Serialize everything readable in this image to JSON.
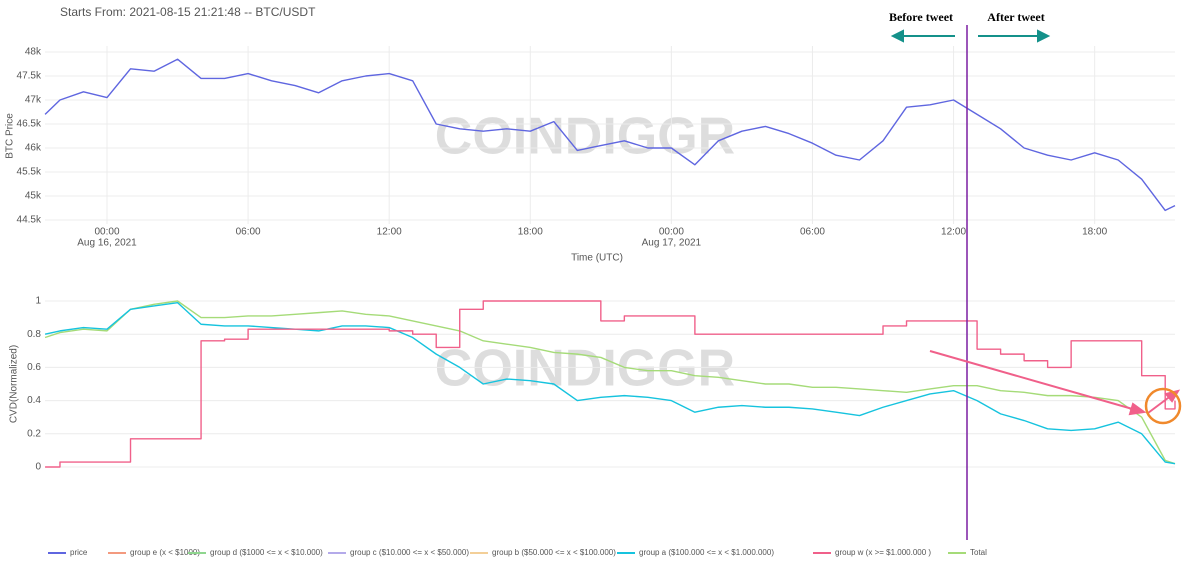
{
  "chart_data": [
    {
      "type": "line",
      "title": "Starts From: 2021-08-15 21:21:48 -- BTC/USDT",
      "ylabel": "BTC Price",
      "xlabel": "Time (UTC)",
      "xlim": [
        "2021-08-15T21:21:48",
        "2021-08-17T21:25"
      ],
      "xticks": [
        {
          "value": "2021-08-16T00:00",
          "label": "00:00",
          "date_label": "Aug 16, 2021"
        },
        {
          "value": "2021-08-16T06:00",
          "label": "06:00"
        },
        {
          "value": "2021-08-16T12:00",
          "label": "12:00"
        },
        {
          "value": "2021-08-16T18:00",
          "label": "18:00"
        },
        {
          "value": "2021-08-17T00:00",
          "label": "00:00",
          "date_label": "Aug 17, 2021"
        },
        {
          "value": "2021-08-17T06:00",
          "label": "06:00"
        },
        {
          "value": "2021-08-17T12:00",
          "label": "12:00"
        },
        {
          "value": "2021-08-17T18:00",
          "label": "18:00"
        }
      ],
      "ylim": [
        44500,
        48000
      ],
      "yticks": [
        {
          "value": 44500,
          "label": "44.5k"
        },
        {
          "value": 45000,
          "label": "45k"
        },
        {
          "value": 45500,
          "label": "45.5k"
        },
        {
          "value": 46000,
          "label": "46k"
        },
        {
          "value": 46500,
          "label": "46.5k"
        },
        {
          "value": 47000,
          "label": "47k"
        },
        {
          "value": 47500,
          "label": "47.5k"
        },
        {
          "value": 48000,
          "label": "48k"
        }
      ],
      "grid": true,
      "x": [
        "2021-08-15T21:22",
        "2021-08-15T22:00",
        "2021-08-15T23:00",
        "2021-08-16T00:00",
        "2021-08-16T01:00",
        "2021-08-16T02:00",
        "2021-08-16T03:00",
        "2021-08-16T04:00",
        "2021-08-16T05:00",
        "2021-08-16T06:00",
        "2021-08-16T07:00",
        "2021-08-16T08:00",
        "2021-08-16T09:00",
        "2021-08-16T10:00",
        "2021-08-16T11:00",
        "2021-08-16T12:00",
        "2021-08-16T13:00",
        "2021-08-16T14:00",
        "2021-08-16T15:00",
        "2021-08-16T16:00",
        "2021-08-16T17:00",
        "2021-08-16T18:00",
        "2021-08-16T19:00",
        "2021-08-16T20:00",
        "2021-08-16T21:00",
        "2021-08-16T22:00",
        "2021-08-16T23:00",
        "2021-08-17T00:00",
        "2021-08-17T01:00",
        "2021-08-17T02:00",
        "2021-08-17T03:00",
        "2021-08-17T04:00",
        "2021-08-17T05:00",
        "2021-08-17T06:00",
        "2021-08-17T07:00",
        "2021-08-17T08:00",
        "2021-08-17T09:00",
        "2021-08-17T10:00",
        "2021-08-17T11:00",
        "2021-08-17T12:00",
        "2021-08-17T13:00",
        "2021-08-17T14:00",
        "2021-08-17T15:00",
        "2021-08-17T16:00",
        "2021-08-17T17:00",
        "2021-08-17T18:00",
        "2021-08-17T19:00",
        "2021-08-17T20:00",
        "2021-08-17T21:00",
        "2021-08-17T21:25"
      ],
      "series": [
        {
          "legend": 0,
          "values": [
            46700,
            47000,
            47170,
            47050,
            47650,
            47600,
            47850,
            47450,
            47450,
            47550,
            47400,
            47300,
            47150,
            47400,
            47500,
            47550,
            47400,
            46500,
            46400,
            46350,
            46400,
            46350,
            46550,
            45950,
            46050,
            46150,
            46000,
            46000,
            45650,
            46150,
            46350,
            46450,
            46300,
            46100,
            45850,
            45750,
            46150,
            46850,
            46900,
            47000,
            46700,
            46400,
            46000,
            45850,
            45750,
            45900,
            45750,
            45350,
            44700,
            44800
          ]
        }
      ]
    },
    {
      "type": "line",
      "ylabel": "CVD(Normalized)",
      "xlim": [
        "2021-08-15T21:21:48",
        "2021-08-17T21:25"
      ],
      "ylim": [
        0,
        1
      ],
      "yticks": [
        0,
        0.2,
        0.4,
        0.6,
        0.8,
        1
      ],
      "grid": true,
      "x": [
        "2021-08-15T21:22",
        "2021-08-15T22:00",
        "2021-08-15T23:00",
        "2021-08-16T00:00",
        "2021-08-16T01:00",
        "2021-08-16T02:00",
        "2021-08-16T03:00",
        "2021-08-16T04:00",
        "2021-08-16T05:00",
        "2021-08-16T06:00",
        "2021-08-16T07:00",
        "2021-08-16T08:00",
        "2021-08-16T09:00",
        "2021-08-16T10:00",
        "2021-08-16T11:00",
        "2021-08-16T12:00",
        "2021-08-16T13:00",
        "2021-08-16T14:00",
        "2021-08-16T15:00",
        "2021-08-16T16:00",
        "2021-08-16T17:00",
        "2021-08-16T18:00",
        "2021-08-16T19:00",
        "2021-08-16T20:00",
        "2021-08-16T21:00",
        "2021-08-16T22:00",
        "2021-08-16T23:00",
        "2021-08-17T00:00",
        "2021-08-17T01:00",
        "2021-08-17T02:00",
        "2021-08-17T03:00",
        "2021-08-17T04:00",
        "2021-08-17T05:00",
        "2021-08-17T06:00",
        "2021-08-17T07:00",
        "2021-08-17T08:00",
        "2021-08-17T09:00",
        "2021-08-17T10:00",
        "2021-08-17T11:00",
        "2021-08-17T12:00",
        "2021-08-17T13:00",
        "2021-08-17T14:00",
        "2021-08-17T15:00",
        "2021-08-17T16:00",
        "2021-08-17T17:00",
        "2021-08-17T18:00",
        "2021-08-17T19:00",
        "2021-08-17T20:00",
        "2021-08-17T21:00",
        "2021-08-17T21:25"
      ],
      "series": [
        {
          "legend": 7,
          "values": [
            0.78,
            0.81,
            0.83,
            0.82,
            0.95,
            0.98,
            1.0,
            0.9,
            0.9,
            0.91,
            0.91,
            0.92,
            0.93,
            0.94,
            0.92,
            0.91,
            0.88,
            0.85,
            0.82,
            0.76,
            0.74,
            0.72,
            0.69,
            0.68,
            0.66,
            0.6,
            0.58,
            0.58,
            0.55,
            0.54,
            0.52,
            0.5,
            0.5,
            0.48,
            0.48,
            0.47,
            0.46,
            0.45,
            0.47,
            0.49,
            0.49,
            0.46,
            0.45,
            0.43,
            0.43,
            0.42,
            0.4,
            0.3,
            0.04,
            0.02
          ]
        },
        {
          "legend": 5,
          "values": [
            0.8,
            0.82,
            0.84,
            0.83,
            0.95,
            0.97,
            0.99,
            0.86,
            0.85,
            0.85,
            0.84,
            0.83,
            0.82,
            0.85,
            0.85,
            0.84,
            0.78,
            0.68,
            0.6,
            0.5,
            0.53,
            0.52,
            0.5,
            0.4,
            0.42,
            0.43,
            0.42,
            0.4,
            0.33,
            0.36,
            0.37,
            0.36,
            0.36,
            0.35,
            0.33,
            0.31,
            0.36,
            0.4,
            0.44,
            0.46,
            0.4,
            0.32,
            0.28,
            0.23,
            0.22,
            0.23,
            0.27,
            0.2,
            0.03,
            0.02
          ]
        },
        {
          "legend": 6,
          "line_shape": "hv",
          "values": [
            0,
            0.03,
            0.03,
            0.03,
            0.17,
            0.17,
            0.17,
            0.76,
            0.77,
            0.83,
            0.83,
            0.83,
            0.83,
            0.83,
            0.83,
            0.82,
            0.8,
            0.72,
            0.95,
            1,
            1,
            1,
            1,
            1,
            0.88,
            0.91,
            0.91,
            0.91,
            0.8,
            0.8,
            0.8,
            0.8,
            0.8,
            0.8,
            0.8,
            0.8,
            0.85,
            0.88,
            0.88,
            0.88,
            0.71,
            0.68,
            0.64,
            0.6,
            0.76,
            0.76,
            0.76,
            0.55,
            0.35,
            0.4
          ]
        }
      ]
    }
  ],
  "legend": [
    {
      "name": "price",
      "color": "#5f66e0"
    },
    {
      "name": "group e (x < $1000)",
      "color": "#f39a7f"
    },
    {
      "name": "group d ($1000 <= x < $10.000)",
      "color": "#8fd68f"
    },
    {
      "name": "group c ($10.000 <= x < $50.000)",
      "color": "#b4aaea"
    },
    {
      "name": "group b ($50.000 <= x < $100.000)",
      "color": "#f3cf98"
    },
    {
      "name": "group a ($100.000 <= x < $1.000.000)",
      "color": "#16c3de"
    },
    {
      "name": "group w (x >= $1.000.000 )",
      "color": "#f0608a"
    },
    {
      "name": "Total",
      "color": "#a5db78"
    }
  ],
  "annotations": {
    "before": "Before tweet",
    "after": "After tweet"
  },
  "watermark": "COINDIGGR"
}
